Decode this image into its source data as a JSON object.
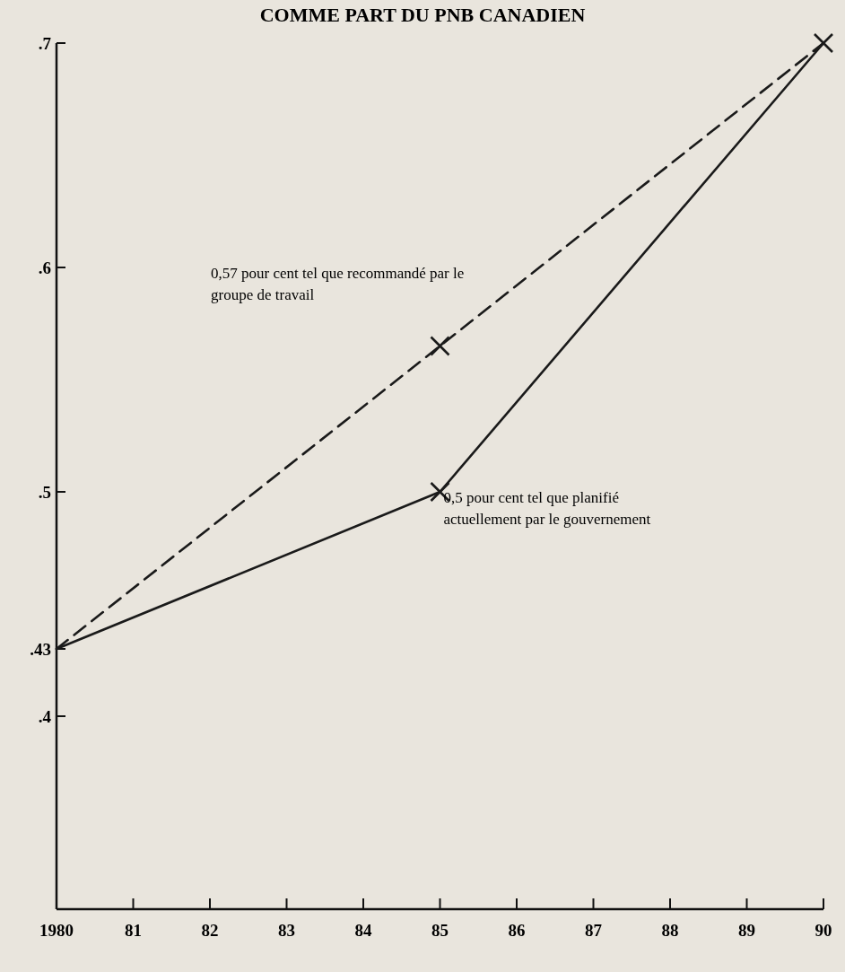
{
  "chart_data": {
    "type": "line",
    "title": "COMME PART DU PNB CANADIEN",
    "xlim": [
      1980,
      1990
    ],
    "ylim": [
      0.314,
      0.7
    ],
    "xticks": [
      {
        "value": 1980,
        "label": "1980"
      },
      {
        "value": 1981,
        "label": "81"
      },
      {
        "value": 1982,
        "label": "82"
      },
      {
        "value": 1983,
        "label": "83"
      },
      {
        "value": 1984,
        "label": "84"
      },
      {
        "value": 1985,
        "label": "85"
      },
      {
        "value": 1986,
        "label": "86"
      },
      {
        "value": 1987,
        "label": "87"
      },
      {
        "value": 1988,
        "label": "88"
      },
      {
        "value": 1989,
        "label": "89"
      },
      {
        "value": 1990,
        "label": "90"
      }
    ],
    "yticks": [
      {
        "value": 0.4,
        "label": ".4"
      },
      {
        "value": 0.43,
        "label": ".43"
      },
      {
        "value": 0.5,
        "label": ".5"
      },
      {
        "value": 0.6,
        "label": ".6"
      },
      {
        "value": 0.7,
        "label": ".7"
      }
    ],
    "series": [
      {
        "color": "#1a1a1a",
        "line_style": "solid",
        "x": [
          1980,
          1985,
          1990
        ],
        "values": [
          0.43,
          0.5,
          0.7
        ]
      },
      {
        "color": "#1a1a1a",
        "line_style": "dashed",
        "x": [
          1980,
          1985,
          1990
        ],
        "values": [
          0.43,
          0.565,
          0.7
        ]
      },
      {
        "type": "scatter",
        "color": "#1a1a1a",
        "marker": "cross",
        "x": [
          1985,
          1985,
          1990
        ],
        "values": [
          0.5,
          0.565,
          0.7
        ]
      }
    ],
    "annotations": [
      "0,57 pour cent tel que recommandé par le groupe de travail",
      {
        "text": "0,5 pour cent tel que planifié actuellement par le gouvernement",
        "x": 1985,
        "y": 0.5
      }
    ]
  }
}
